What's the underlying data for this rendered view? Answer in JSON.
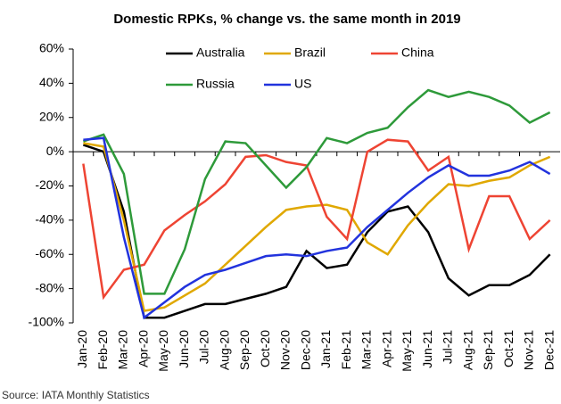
{
  "chart_data": {
    "type": "line",
    "title": "Domestic RPKs, % change vs. the same month in 2019",
    "source": "Source: IATA Monthly Statistics",
    "categories": [
      "Jan-20",
      "Feb-20",
      "Mar-20",
      "Apr-20",
      "May-20",
      "Jun-20",
      "Jul-20",
      "Aug-20",
      "Sep-20",
      "Oct-20",
      "Nov-20",
      "Dec-20",
      "Jan-21",
      "Feb-21",
      "Mar-21",
      "Apr-21",
      "May-21",
      "Jun-21",
      "Jul-21",
      "Aug-21",
      "Sep-21",
      "Oct-21",
      "Nov-21",
      "Dec-21"
    ],
    "series": [
      {
        "name": "Australia",
        "color": "#000000",
        "values": [
          4,
          0,
          -35,
          -97,
          -97,
          -93,
          -89,
          -89,
          -86,
          -83,
          -79,
          -58,
          -68,
          -66,
          -47,
          -35,
          -32,
          -47,
          -74,
          -84,
          -78,
          -78,
          -72,
          -60
        ]
      },
      {
        "name": "Brazil",
        "color": "#e0a800",
        "values": [
          5,
          3,
          -40,
          -93,
          -91,
          -84,
          -77,
          -66,
          -55,
          -44,
          -34,
          -32,
          -31,
          -34,
          -53,
          -60,
          -43,
          -30,
          -19,
          -20,
          -17,
          -15,
          -8,
          -3
        ]
      },
      {
        "name": "China",
        "color": "#ee4433",
        "values": [
          -7,
          -85,
          -69,
          -66,
          -46,
          -37,
          -29,
          -19,
          -3,
          -2,
          -6,
          -8,
          -38,
          -51,
          0,
          7,
          6,
          -11,
          -3,
          -57,
          -26,
          -26,
          -51,
          -40
        ]
      },
      {
        "name": "Russia",
        "color": "#2e9a3a",
        "values": [
          6,
          10,
          -13,
          -83,
          -83,
          -57,
          -16,
          6,
          5,
          -8,
          -21,
          -9,
          8,
          5,
          11,
          14,
          26,
          36,
          32,
          35,
          32,
          27,
          17,
          23
        ]
      },
      {
        "name": "US",
        "color": "#2233dd",
        "values": [
          7,
          8,
          -50,
          -97,
          -88,
          -79,
          -72,
          -69,
          -65,
          -61,
          -60,
          -61,
          -58,
          -56,
          -44,
          -34,
          -24,
          -15,
          -8,
          -14,
          -14,
          -11,
          -6,
          -13
        ]
      }
    ],
    "ylim": [
      -100,
      60
    ],
    "yticks": [
      {
        "value": -100,
        "label": "-100%"
      },
      {
        "value": -80,
        "label": "-80%"
      },
      {
        "value": -60,
        "label": "-60%"
      },
      {
        "value": -40,
        "label": "-40%"
      },
      {
        "value": -20,
        "label": "-20%"
      },
      {
        "value": 0,
        "label": "0%"
      },
      {
        "value": 20,
        "label": "20%"
      },
      {
        "value": 40,
        "label": "40%"
      },
      {
        "value": 60,
        "label": "60%"
      }
    ]
  }
}
